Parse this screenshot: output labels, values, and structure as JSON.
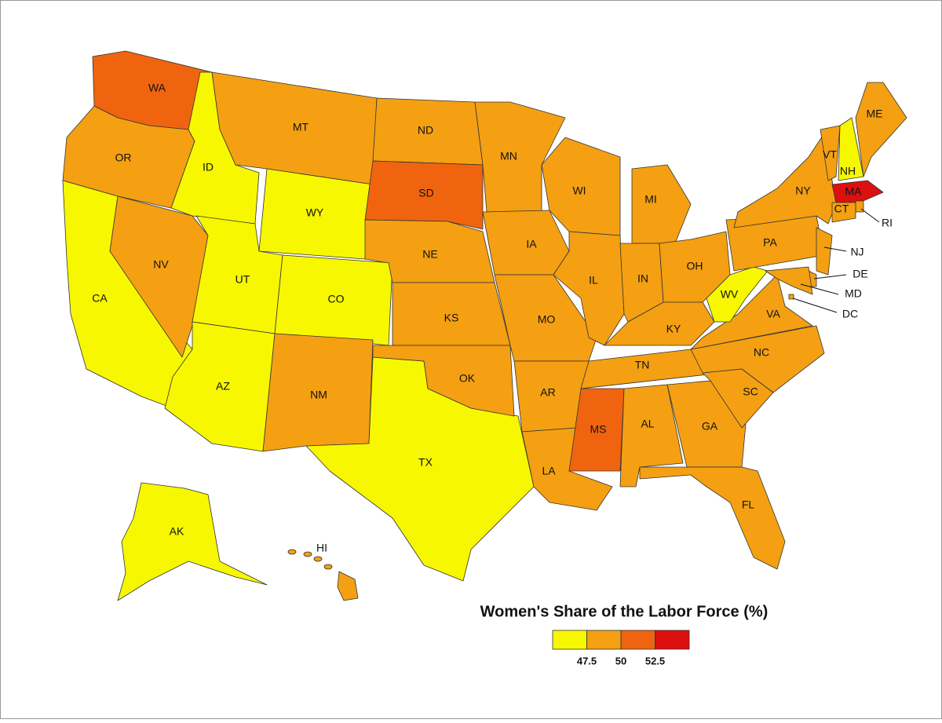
{
  "title": "Women's Share of the Labor Force (%)",
  "legend": {
    "colors": [
      "#f7f700",
      "#f4a012",
      "#f0640f",
      "#dc100f"
    ],
    "ticks": [
      47.5,
      50,
      52.5
    ]
  },
  "states": [
    {
      "label": "WA",
      "color": "#f0640f"
    },
    {
      "label": "OR",
      "color": "#f4a012"
    },
    {
      "label": "CA",
      "color": "#f7f700"
    },
    {
      "label": "NV",
      "color": "#f4a012"
    },
    {
      "label": "ID",
      "color": "#f7f700"
    },
    {
      "label": "MT",
      "color": "#f4a012"
    },
    {
      "label": "WY",
      "color": "#f7f700"
    },
    {
      "label": "UT",
      "color": "#f7f700"
    },
    {
      "label": "CO",
      "color": "#f7f700"
    },
    {
      "label": "AZ",
      "color": "#f7f700"
    },
    {
      "label": "NM",
      "color": "#f4a012"
    },
    {
      "label": "TX",
      "color": "#f7f700"
    },
    {
      "label": "ND",
      "color": "#f4a012"
    },
    {
      "label": "SD",
      "color": "#f0640f"
    },
    {
      "label": "NE",
      "color": "#f4a012"
    },
    {
      "label": "KS",
      "color": "#f4a012"
    },
    {
      "label": "OK",
      "color": "#f4a012"
    },
    {
      "label": "MN",
      "color": "#f4a012"
    },
    {
      "label": "IA",
      "color": "#f4a012"
    },
    {
      "label": "MO",
      "color": "#f4a012"
    },
    {
      "label": "AR",
      "color": "#f4a012"
    },
    {
      "label": "LA",
      "color": "#f4a012"
    },
    {
      "label": "MS",
      "color": "#f0640f"
    },
    {
      "label": "WI",
      "color": "#f4a012"
    },
    {
      "label": "MI",
      "color": "#f4a012"
    },
    {
      "label": "IL",
      "color": "#f4a012"
    },
    {
      "label": "IN",
      "color": "#f4a012"
    },
    {
      "label": "OH",
      "color": "#f4a012"
    },
    {
      "label": "KY",
      "color": "#f4a012"
    },
    {
      "label": "TN",
      "color": "#f4a012"
    },
    {
      "label": "AL",
      "color": "#f4a012"
    },
    {
      "label": "GA",
      "color": "#f4a012"
    },
    {
      "label": "FL",
      "color": "#f4a012"
    },
    {
      "label": "SC",
      "color": "#f4a012"
    },
    {
      "label": "NC",
      "color": "#f4a012"
    },
    {
      "label": "VA",
      "color": "#f4a012"
    },
    {
      "label": "WV",
      "color": "#f7f700"
    },
    {
      "label": "PA",
      "color": "#f4a012"
    },
    {
      "label": "NY",
      "color": "#f4a012"
    },
    {
      "label": "VT",
      "color": "#f4a012"
    },
    {
      "label": "NH",
      "color": "#f7f700"
    },
    {
      "label": "ME",
      "color": "#f4a012"
    },
    {
      "label": "MA",
      "color": "#dc100f"
    },
    {
      "label": "CT",
      "color": "#f4a012"
    },
    {
      "label": "RI",
      "color": "#f4a012"
    },
    {
      "label": "NJ",
      "color": "#f4a012"
    },
    {
      "label": "DE",
      "color": "#f4a012"
    },
    {
      "label": "MD",
      "color": "#f4a012"
    },
    {
      "label": "DC",
      "color": "#f4a012"
    },
    {
      "label": "AK",
      "color": "#f7f700"
    },
    {
      "label": "HI",
      "color": "#f4a012"
    }
  ]
}
